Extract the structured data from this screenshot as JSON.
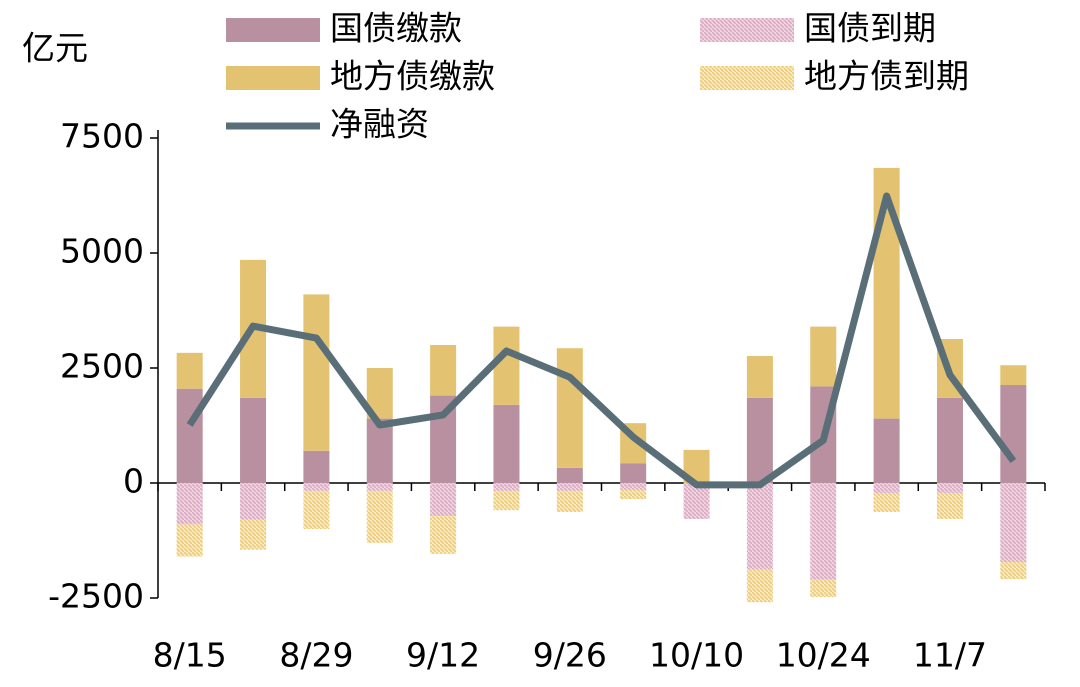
{
  "chart_data": {
    "type": "bar",
    "unit": "亿元",
    "categories": [
      "8/15",
      null,
      "8/29",
      null,
      "9/12",
      null,
      "9/26",
      null,
      "10/10",
      null,
      "10/24",
      null,
      "11/7",
      null
    ],
    "series": [
      {
        "name": "国债缴款",
        "type": "bar",
        "stack": "pos",
        "color": "#b8909f",
        "hatch": false,
        "values": [
          2050,
          1850,
          700,
          1400,
          1900,
          1700,
          330,
          430,
          0,
          1850,
          2100,
          1400,
          1850,
          2130
        ]
      },
      {
        "name": "国债到期",
        "type": "bar",
        "stack": "neg",
        "color": "#d9a9c0",
        "hatch": true,
        "values": [
          -900,
          -800,
          -170,
          -170,
          -720,
          -170,
          -170,
          -150,
          -780,
          -1870,
          -2100,
          -220,
          -220,
          -1720
        ]
      },
      {
        "name": "地方债缴款",
        "type": "bar",
        "stack": "pos",
        "color": "#e3c272",
        "hatch": false,
        "values": [
          780,
          3000,
          3400,
          1100,
          1100,
          1700,
          2600,
          870,
          720,
          910,
          1300,
          5450,
          1280,
          430
        ]
      },
      {
        "name": "地方债到期",
        "type": "bar",
        "stack": "neg",
        "color": "#f0d68e",
        "hatch": true,
        "values": [
          -700,
          -650,
          -830,
          -1130,
          -820,
          -420,
          -460,
          -200,
          0,
          -720,
          -380,
          -410,
          -560,
          -370
        ]
      },
      {
        "name": "净融资",
        "type": "line",
        "color": "#5a6e78",
        "values": [
          1260,
          3410,
          3150,
          1260,
          1480,
          2870,
          2300,
          1000,
          -40,
          -40,
          930,
          6240,
          2350,
          480
        ]
      }
    ],
    "ylim": [
      -2500,
      7500
    ],
    "yticks": [
      -2500,
      0,
      2500,
      5000,
      7500
    ]
  }
}
